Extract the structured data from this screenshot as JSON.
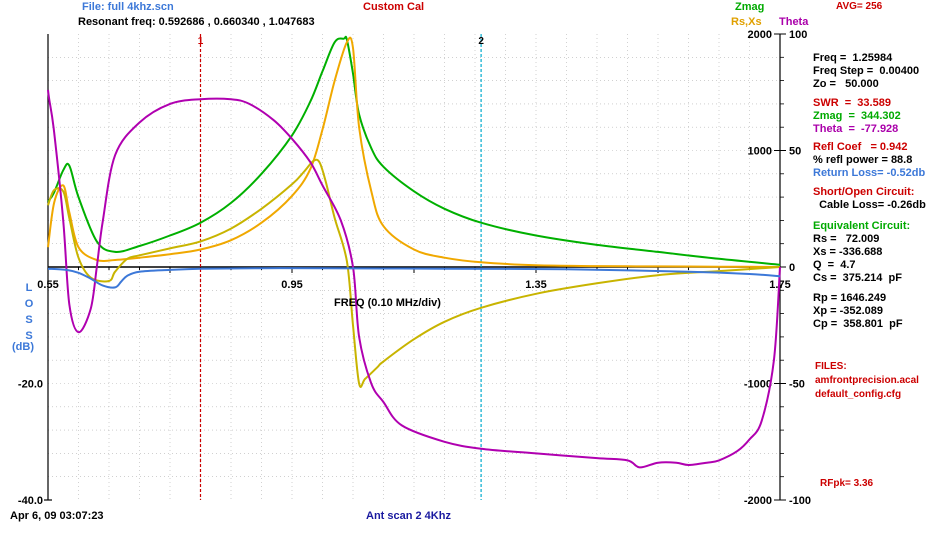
{
  "header": {
    "file_label": "File: full 4khz.scn",
    "resonant": "Resonant freq:  0.592686 , 0.660340 , 1.047683",
    "cal_label": "Custom Cal",
    "zmag_label": "Zmag",
    "rsxs_label": "Rs,Xs",
    "theta_label": "Theta",
    "avg_label": "AVG=  256"
  },
  "footer": {
    "date": "Apr 6, 09  03:07:23",
    "scan_name": "Ant scan 2 4Khz"
  },
  "loss_axis": {
    "vertical_letters": [
      "L",
      "O",
      "S",
      "S"
    ],
    "unit": "(dB)"
  },
  "panel": {
    "freq": "Freq =  1.25984",
    "freq_step": "Freq Step =  0.00400",
    "zo": "Zo =   50.000",
    "swr": "SWR  =  33.589",
    "zmag": "Zmag  =  344.302",
    "theta": "Theta  =  -77.928",
    "refl_coef": "Refl Coef   = 0.942",
    "refl_power": "% refl power = 88.8",
    "return_loss": "Return Loss= -0.52db",
    "short_open": "Short/Open Circuit:",
    "cable_loss": "  Cable Loss= -0.26db",
    "eq_circuit": "Equivalent Circuit:",
    "rs": "Rs =   72.009",
    "xs": "Xs = -336.688",
    "q": "Q  =  4.7",
    "cs": "Cs =  375.214  pF",
    "rp": "Rp = 1646.249",
    "xp": "Xp = -352.089",
    "cp": "Cp =  358.801  pF",
    "files_label": "FILES:",
    "file1": "amfrontprecision.acal",
    "file2": "default_config.cfg",
    "rfpk": "RFpk= 3.36"
  },
  "colors": {
    "zmag": "#00b000",
    "rs": "#f0a800",
    "xs": "#c8b400",
    "theta": "#b000b0",
    "loss": "#3c78d8",
    "marker1": "#cc0000",
    "marker2": "#00aacc",
    "grid": "#b4b4b4"
  },
  "chart_data": {
    "type": "line",
    "xlabel": "FREQ (0.10 MHz/div)",
    "x_range": [
      0.55,
      1.75
    ],
    "x_tick_labels": [
      "0.55",
      "0.95",
      "1.35",
      "1.75"
    ],
    "x_ticks": [
      0.55,
      0.95,
      1.35,
      1.75
    ],
    "loss_axis": {
      "range": [
        -40,
        0
      ],
      "tick_labels": [
        "-20.0",
        "-40.0"
      ],
      "ticks": [
        -20,
        -40
      ]
    },
    "z_axis": {
      "range": [
        -2000,
        2000
      ],
      "tick_labels": [
        "2000",
        "1000",
        "0",
        "-1000",
        "-2000"
      ],
      "ticks": [
        2000,
        1000,
        0,
        -1000,
        -2000
      ]
    },
    "theta_axis": {
      "range": [
        -100,
        100
      ],
      "tick_labels": [
        "100",
        "50",
        "0",
        "-50",
        "-100"
      ],
      "ticks": [
        100,
        50,
        0,
        -50,
        -100
      ]
    },
    "markers": [
      {
        "label": "1",
        "x": 0.8
      },
      {
        "label": "2",
        "x": 1.26
      }
    ],
    "series": [
      {
        "name": "Zmag",
        "axis": "z",
        "x": [
          0.55,
          0.56,
          0.575,
          0.585,
          0.6,
          0.63,
          0.66,
          0.7,
          0.75,
          0.8,
          0.85,
          0.9,
          0.95,
          0.98,
          1.0,
          1.02,
          1.035,
          1.04,
          1.05,
          1.06,
          1.08,
          1.1,
          1.15,
          1.2,
          1.26,
          1.35,
          1.45,
          1.55,
          1.65,
          1.75
        ],
        "y": [
          560,
          640,
          830,
          870,
          600,
          220,
          130,
          180,
          270,
          380,
          550,
          800,
          1130,
          1420,
          1680,
          1930,
          1960,
          1950,
          1660,
          1310,
          1020,
          860,
          650,
          500,
          380,
          270,
          190,
          130,
          70,
          20
        ]
      },
      {
        "name": "Rs",
        "axis": "z",
        "x": [
          0.55,
          0.56,
          0.575,
          0.585,
          0.6,
          0.63,
          0.66,
          0.7,
          0.75,
          0.8,
          0.85,
          0.9,
          0.95,
          0.98,
          1.0,
          1.02,
          1.04,
          1.05,
          1.06,
          1.08,
          1.1,
          1.15,
          1.2,
          1.26,
          1.35,
          1.45,
          1.55,
          1.65,
          1.75
        ],
        "y": [
          170,
          550,
          700,
          470,
          170,
          60,
          60,
          80,
          110,
          150,
          230,
          380,
          610,
          840,
          1180,
          1600,
          1930,
          1880,
          1200,
          650,
          350,
          150,
          80,
          40,
          15,
          8,
          5,
          3,
          0
        ]
      },
      {
        "name": "Xs",
        "axis": "z",
        "x": [
          0.55,
          0.56,
          0.575,
          0.585,
          0.6,
          0.62,
          0.65,
          0.66,
          0.68,
          0.7,
          0.75,
          0.8,
          0.85,
          0.9,
          0.95,
          0.97,
          0.985,
          0.995,
          1.005,
          1.02,
          1.04,
          1.05,
          1.06,
          1.07,
          1.09,
          1.1,
          1.15,
          1.2,
          1.26,
          1.35,
          1.45,
          1.55,
          1.65,
          1.75
        ],
        "y": [
          530,
          660,
          650,
          420,
          80,
          -90,
          -120,
          -40,
          70,
          100,
          160,
          220,
          330,
          500,
          710,
          820,
          910,
          900,
          740,
          420,
          50,
          -500,
          -1000,
          -960,
          -860,
          -810,
          -620,
          -470,
          -350,
          -230,
          -140,
          -70,
          -35,
          0
        ]
      },
      {
        "name": "Theta",
        "axis": "theta",
        "x": [
          0.55,
          0.552,
          0.56,
          0.575,
          0.585,
          0.6,
          0.62,
          0.63,
          0.64,
          0.66,
          0.7,
          0.75,
          0.8,
          0.85,
          0.88,
          0.92,
          0.95,
          0.98,
          1.0,
          1.03,
          1.05,
          1.06,
          1.08,
          1.1,
          1.13,
          1.2,
          1.26,
          1.35,
          1.45,
          1.5,
          1.52,
          1.55,
          1.58,
          1.6,
          1.63,
          1.65,
          1.68,
          1.7,
          1.72,
          1.74,
          1.75
        ],
        "y": [
          76,
          72,
          58,
          20,
          -16,
          -28,
          -18,
          0,
          20,
          48,
          62,
          70,
          72,
          72,
          70,
          63,
          55,
          45,
          35,
          20,
          0,
          -30,
          -50,
          -58,
          -68,
          -75,
          -78,
          -80,
          -82,
          -83,
          -86,
          -84,
          -84,
          -85,
          -84,
          -83,
          -79,
          -74,
          -66,
          -40,
          0
        ]
      },
      {
        "name": "Return Loss",
        "axis": "loss",
        "x": [
          0.55,
          0.58,
          0.6,
          0.62,
          0.64,
          0.66,
          0.67,
          0.68,
          0.7,
          0.75,
          0.8,
          0.9,
          1.0,
          1.2,
          1.4,
          1.6,
          1.7,
          1.75
        ],
        "y": [
          -0.3,
          -0.5,
          -1.0,
          -2.0,
          -3.2,
          -3.5,
          -2.5,
          -1.5,
          -0.8,
          -0.5,
          -0.3,
          -0.2,
          -0.2,
          -0.3,
          -0.4,
          -0.8,
          -1.2,
          -1.6
        ]
      }
    ]
  }
}
